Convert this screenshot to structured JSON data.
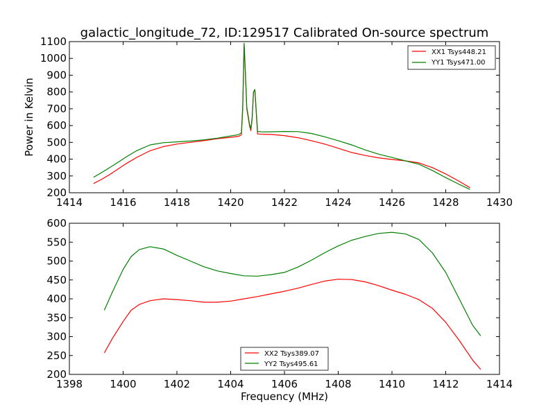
{
  "chart_data": [
    {
      "type": "line",
      "title": "galactic_longitude_72, ID:129517 Calibrated On-source spectrum",
      "xlabel": "",
      "ylabel": "Power in Kelvin",
      "xlim": [
        1414,
        1430
      ],
      "ylim": [
        200,
        1100
      ],
      "xticks": [
        1414,
        1416,
        1418,
        1420,
        1422,
        1424,
        1426,
        1428,
        1430
      ],
      "yticks": [
        200,
        300,
        400,
        500,
        600,
        700,
        800,
        900,
        1000,
        1100
      ],
      "grid": false,
      "legend_position": "top-right",
      "series": [
        {
          "name": "XX1 Tsys448.21",
          "color": "#ff0000",
          "points": [
            [
              1414.9,
              255
            ],
            [
              1415.2,
              280
            ],
            [
              1415.5,
              308
            ],
            [
              1415.8,
              340
            ],
            [
              1416.1,
              372
            ],
            [
              1416.5,
              410
            ],
            [
              1417.0,
              450
            ],
            [
              1417.5,
              475
            ],
            [
              1418.0,
              490
            ],
            [
              1418.5,
              500
            ],
            [
              1419.0,
              510
            ],
            [
              1419.5,
              522
            ],
            [
              1420.0,
              530
            ],
            [
              1420.3,
              536
            ],
            [
              1420.4,
              545
            ],
            [
              1420.45,
              700
            ],
            [
              1420.5,
              1080
            ],
            [
              1420.55,
              900
            ],
            [
              1420.6,
              700
            ],
            [
              1420.65,
              650
            ],
            [
              1420.7,
              600
            ],
            [
              1420.75,
              570
            ],
            [
              1420.8,
              640
            ],
            [
              1420.85,
              800
            ],
            [
              1420.9,
              810
            ],
            [
              1420.95,
              680
            ],
            [
              1421.0,
              550
            ],
            [
              1421.2,
              548
            ],
            [
              1421.5,
              547
            ],
            [
              1422.0,
              540
            ],
            [
              1422.5,
              528
            ],
            [
              1423.0,
              510
            ],
            [
              1423.5,
              490
            ],
            [
              1424.0,
              465
            ],
            [
              1424.5,
              440
            ],
            [
              1425.0,
              422
            ],
            [
              1425.5,
              408
            ],
            [
              1426.0,
              398
            ],
            [
              1426.5,
              390
            ],
            [
              1427.0,
              378
            ],
            [
              1427.5,
              350
            ],
            [
              1428.0,
              312
            ],
            [
              1428.5,
              268
            ],
            [
              1428.9,
              230
            ]
          ]
        },
        {
          "name": "YY1 Tsys471.00",
          "color": "#008000",
          "points": [
            [
              1414.9,
              292
            ],
            [
              1415.2,
              320
            ],
            [
              1415.5,
              350
            ],
            [
              1415.8,
              380
            ],
            [
              1416.1,
              412
            ],
            [
              1416.5,
              450
            ],
            [
              1417.0,
              485
            ],
            [
              1417.5,
              498
            ],
            [
              1418.0,
              503
            ],
            [
              1418.5,
              508
            ],
            [
              1419.0,
              515
            ],
            [
              1419.5,
              525
            ],
            [
              1420.0,
              538
            ],
            [
              1420.3,
              546
            ],
            [
              1420.4,
              558
            ],
            [
              1420.45,
              720
            ],
            [
              1420.5,
              1090
            ],
            [
              1420.55,
              910
            ],
            [
              1420.6,
              710
            ],
            [
              1420.65,
              660
            ],
            [
              1420.7,
              610
            ],
            [
              1420.75,
              580
            ],
            [
              1420.8,
              650
            ],
            [
              1420.85,
              800
            ],
            [
              1420.9,
              815
            ],
            [
              1420.95,
              690
            ],
            [
              1421.0,
              565
            ],
            [
              1421.2,
              562
            ],
            [
              1421.5,
              563
            ],
            [
              1422.0,
              565
            ],
            [
              1422.5,
              564
            ],
            [
              1423.0,
              553
            ],
            [
              1423.5,
              533
            ],
            [
              1424.0,
              510
            ],
            [
              1424.5,
              485
            ],
            [
              1425.0,
              455
            ],
            [
              1425.5,
              430
            ],
            [
              1426.0,
              410
            ],
            [
              1426.5,
              390
            ],
            [
              1427.0,
              370
            ],
            [
              1427.5,
              333
            ],
            [
              1428.0,
              290
            ],
            [
              1428.5,
              250
            ],
            [
              1428.9,
              220
            ]
          ]
        }
      ]
    },
    {
      "type": "line",
      "title": "",
      "xlabel": "Frequency (MHz)",
      "ylabel": "",
      "xlim": [
        1398,
        1414
      ],
      "ylim": [
        200,
        600
      ],
      "xticks": [
        1398,
        1400,
        1402,
        1404,
        1406,
        1408,
        1410,
        1412,
        1414
      ],
      "yticks": [
        200,
        250,
        300,
        350,
        400,
        450,
        500,
        550,
        600
      ],
      "grid": false,
      "legend_position": "bottom-center",
      "series": [
        {
          "name": "XX2 Tsys389.07",
          "color": "#ff0000",
          "points": [
            [
              1399.3,
              257
            ],
            [
              1399.6,
              295
            ],
            [
              1400.0,
              340
            ],
            [
              1400.3,
              370
            ],
            [
              1400.6,
              385
            ],
            [
              1401.0,
              395
            ],
            [
              1401.5,
              400
            ],
            [
              1402.0,
              398
            ],
            [
              1402.5,
              395
            ],
            [
              1403.0,
              391
            ],
            [
              1403.5,
              391
            ],
            [
              1404.0,
              394
            ],
            [
              1404.5,
              400
            ],
            [
              1405.0,
              406
            ],
            [
              1405.5,
              413
            ],
            [
              1406.0,
              420
            ],
            [
              1406.5,
              428
            ],
            [
              1407.0,
              438
            ],
            [
              1407.5,
              447
            ],
            [
              1408.0,
              452
            ],
            [
              1408.5,
              451
            ],
            [
              1409.0,
              445
            ],
            [
              1409.5,
              435
            ],
            [
              1410.0,
              423
            ],
            [
              1410.5,
              412
            ],
            [
              1411.0,
              398
            ],
            [
              1411.5,
              375
            ],
            [
              1412.0,
              338
            ],
            [
              1412.5,
              290
            ],
            [
              1413.0,
              238
            ],
            [
              1413.3,
              213
            ]
          ]
        },
        {
          "name": "YY2 Tsys495.61",
          "color": "#008000",
          "points": [
            [
              1399.3,
              370
            ],
            [
              1399.6,
              418
            ],
            [
              1400.0,
              478
            ],
            [
              1400.3,
              512
            ],
            [
              1400.6,
              530
            ],
            [
              1401.0,
              538
            ],
            [
              1401.5,
              532
            ],
            [
              1402.0,
              515
            ],
            [
              1402.5,
              500
            ],
            [
              1403.0,
              485
            ],
            [
              1403.5,
              474
            ],
            [
              1404.0,
              467
            ],
            [
              1404.5,
              461
            ],
            [
              1405.0,
              460
            ],
            [
              1405.5,
              464
            ],
            [
              1406.0,
              470
            ],
            [
              1406.5,
              484
            ],
            [
              1407.0,
              502
            ],
            [
              1407.5,
              522
            ],
            [
              1408.0,
              540
            ],
            [
              1408.5,
              555
            ],
            [
              1409.0,
              565
            ],
            [
              1409.5,
              573
            ],
            [
              1410.0,
              576
            ],
            [
              1410.5,
              572
            ],
            [
              1411.0,
              557
            ],
            [
              1411.5,
              522
            ],
            [
              1412.0,
              470
            ],
            [
              1412.5,
              400
            ],
            [
              1413.0,
              330
            ],
            [
              1413.3,
              302
            ]
          ]
        }
      ]
    }
  ]
}
